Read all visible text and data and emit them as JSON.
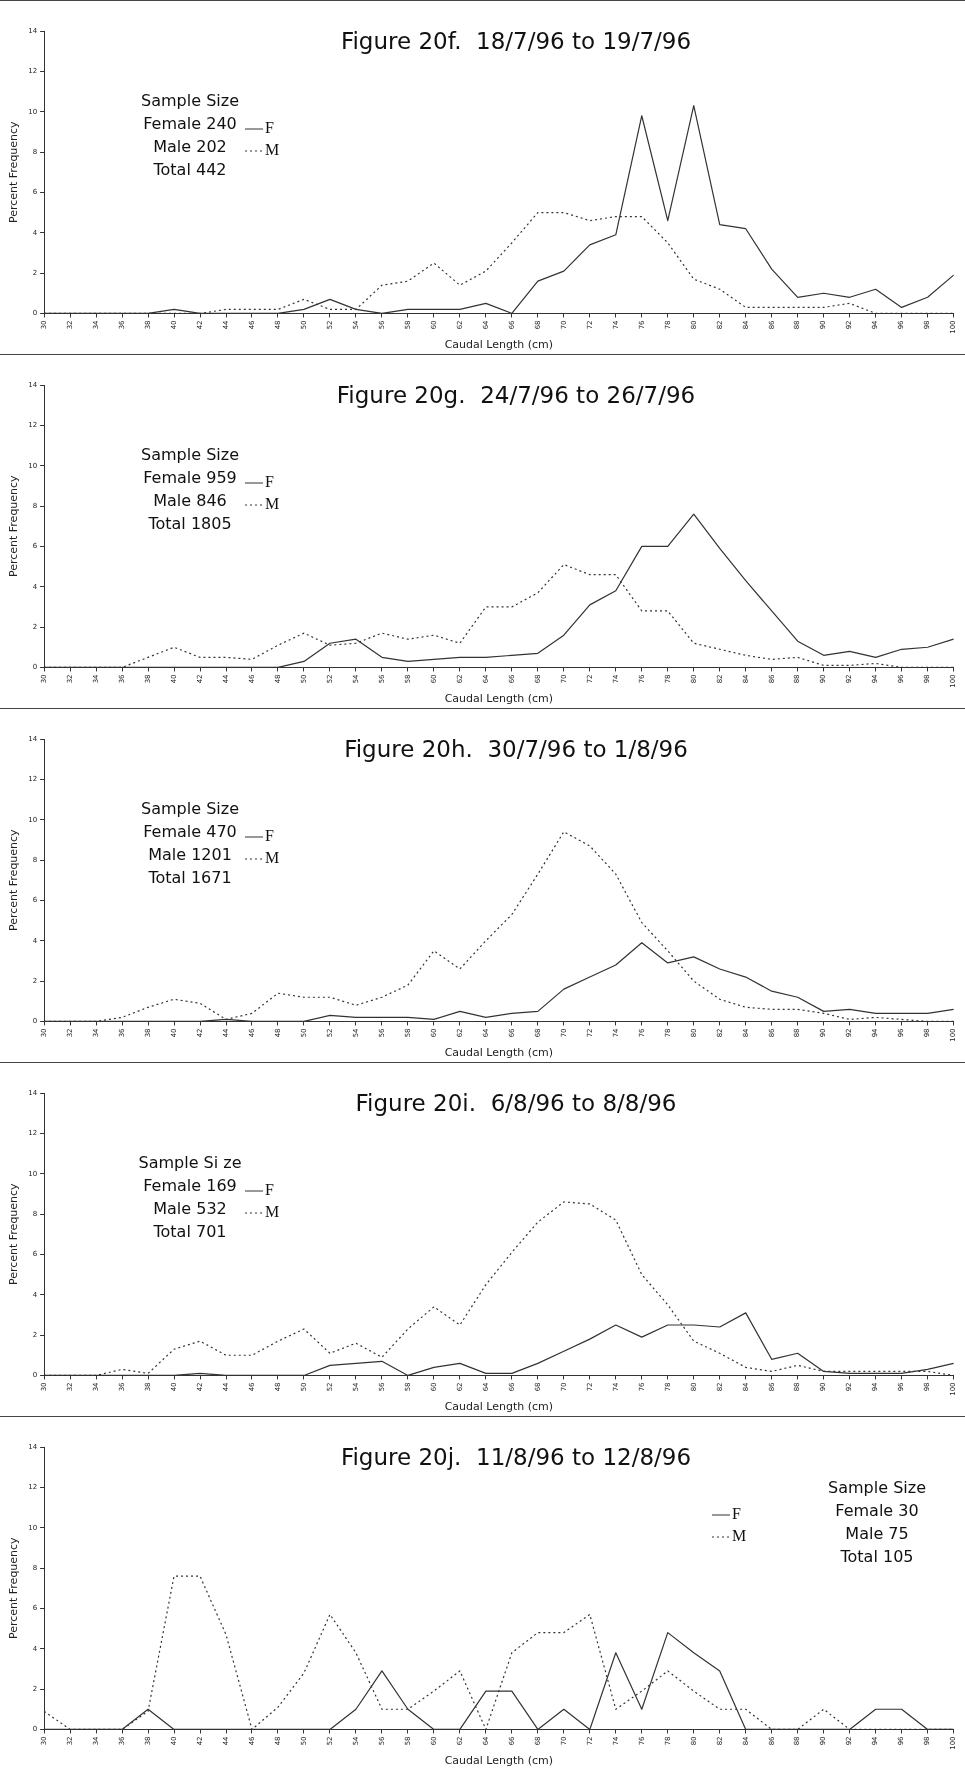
{
  "chart_data": [
    {
      "type": "line",
      "title": "Figure 20f.  18/7/96 to 19/7/96",
      "xlabel": "Caudal Length (cm)",
      "ylabel": "Percent Frequency",
      "categories": [
        "30",
        "32",
        "34",
        "36",
        "38",
        "40",
        "42",
        "44",
        "46",
        "48",
        "50",
        "52",
        "54",
        "56",
        "58",
        "60",
        "62",
        "64",
        "66",
        "68",
        "70",
        "72",
        "74",
        "76",
        "78",
        "80",
        "82",
        "84",
        "86",
        "88",
        "90",
        "92",
        "94",
        "96",
        "98",
        "100"
      ],
      "ylim": [
        0,
        14
      ],
      "yticks": [
        0,
        2,
        4,
        6,
        8,
        10,
        12,
        14
      ],
      "legend": "top left",
      "marker": "none",
      "annotations": [
        "Sample Size",
        "Female 240",
        "Male 202",
        "Total 442"
      ],
      "series": [
        {
          "name": "F",
          "color": "#333333",
          "line_style": "solid",
          "values": [
            0,
            0,
            0,
            0,
            0,
            0.2,
            0,
            0,
            0,
            0,
            0.2,
            0.7,
            0.2,
            0,
            0.2,
            0.2,
            0.2,
            0.5,
            0,
            1.6,
            2.1,
            3.4,
            3.9,
            9.8,
            4.6,
            10.3,
            4.4,
            4.2,
            2.2,
            0.8,
            1.0,
            0.8,
            1.2,
            0.3,
            0.8,
            1.9
          ]
        },
        {
          "name": "M",
          "color": "#333333",
          "line_style": "dotted",
          "values": [
            0,
            0,
            0,
            0,
            0,
            0,
            0,
            0.2,
            0.2,
            0.2,
            0.7,
            0.2,
            0.2,
            1.4,
            1.6,
            2.5,
            1.4,
            2.1,
            3.5,
            5.0,
            5.0,
            4.6,
            4.8,
            4.8,
            3.5,
            1.7,
            1.2,
            0.3,
            0.3,
            0.3,
            0.3,
            0.5,
            0,
            0,
            0,
            0
          ]
        }
      ]
    },
    {
      "type": "line",
      "title": "Figure 20g.  24/7/96 to 26/7/96",
      "xlabel": "Caudal Length (cm)",
      "ylabel": "Percent Frequency",
      "categories": [
        "30",
        "32",
        "34",
        "36",
        "38",
        "40",
        "42",
        "44",
        "46",
        "48",
        "50",
        "52",
        "54",
        "56",
        "58",
        "60",
        "62",
        "64",
        "66",
        "68",
        "70",
        "72",
        "74",
        "76",
        "78",
        "80",
        "82",
        "84",
        "86",
        "88",
        "90",
        "92",
        "94",
        "96",
        "98",
        "100"
      ],
      "ylim": [
        0,
        14
      ],
      "yticks": [
        0,
        2,
        4,
        6,
        8,
        10,
        12,
        14
      ],
      "legend": "top left",
      "marker": "none",
      "annotations": [
        "Sample Size",
        "Female 959",
        "Male 846",
        "Total 1805"
      ],
      "series": [
        {
          "name": "F",
          "color": "#333333",
          "line_style": "solid",
          "values": [
            0,
            0,
            0,
            0,
            0,
            0,
            0,
            0,
            0,
            0,
            0.3,
            1.2,
            1.4,
            0.5,
            0.3,
            0.4,
            0.5,
            0.5,
            0.6,
            0.7,
            1.6,
            3.1,
            3.8,
            6.0,
            6.0,
            7.6,
            5.9,
            4.3,
            2.8,
            1.3,
            0.6,
            0.8,
            0.5,
            0.9,
            1.0,
            1.4
          ]
        },
        {
          "name": "M",
          "color": "#333333",
          "line_style": "dotted",
          "values": [
            0,
            0,
            0,
            0,
            0.5,
            1.0,
            0.5,
            0.5,
            0.4,
            1.1,
            1.7,
            1.1,
            1.2,
            1.7,
            1.4,
            1.6,
            1.2,
            3.0,
            3.0,
            3.7,
            5.1,
            4.6,
            4.6,
            2.8,
            2.8,
            1.2,
            0.9,
            0.6,
            0.4,
            0.5,
            0.1,
            0.1,
            0.2,
            0,
            0,
            0
          ]
        }
      ]
    },
    {
      "type": "line",
      "title": "Figure 20h.  30/7/96 to 1/8/96",
      "xlabel": "Caudal Length (cm)",
      "ylabel": "Percent Frequency",
      "categories": [
        "30",
        "32",
        "34",
        "36",
        "38",
        "40",
        "42",
        "44",
        "46",
        "48",
        "50",
        "52",
        "54",
        "56",
        "58",
        "60",
        "62",
        "64",
        "66",
        "68",
        "70",
        "72",
        "74",
        "76",
        "78",
        "80",
        "82",
        "84",
        "86",
        "88",
        "90",
        "92",
        "94",
        "96",
        "98",
        "100"
      ],
      "ylim": [
        0,
        14
      ],
      "yticks": [
        0,
        2,
        4,
        6,
        8,
        10,
        12,
        14
      ],
      "legend": "top left",
      "marker": "none",
      "annotations": [
        "Sample Size",
        "Female 470",
        "Male 1201",
        "Total 1671"
      ],
      "series": [
        {
          "name": "F",
          "color": "#333333",
          "line_style": "solid",
          "values": [
            0,
            0,
            0,
            0,
            0,
            0,
            0,
            0.1,
            0,
            0,
            0,
            0.3,
            0.2,
            0.2,
            0.2,
            0.1,
            0.5,
            0.2,
            0.4,
            0.5,
            1.6,
            2.2,
            2.8,
            3.9,
            2.9,
            3.2,
            2.6,
            2.2,
            1.5,
            1.2,
            0.5,
            0.6,
            0.4,
            0.4,
            0.4,
            0.6
          ]
        },
        {
          "name": "M",
          "color": "#333333",
          "line_style": "dotted",
          "values": [
            0,
            0,
            0,
            0.2,
            0.7,
            1.1,
            0.9,
            0.1,
            0.4,
            1.4,
            1.2,
            1.2,
            0.8,
            1.2,
            1.8,
            3.5,
            2.6,
            4.0,
            5.3,
            7.3,
            9.4,
            8.7,
            7.3,
            4.9,
            3.5,
            2.0,
            1.1,
            0.7,
            0.6,
            0.6,
            0.4,
            0.1,
            0.2,
            0.1,
            0,
            0
          ]
        }
      ]
    },
    {
      "type": "line",
      "title": "Figure 20i.  6/8/96 to 8/8/96",
      "xlabel": "Caudal Length (cm)",
      "ylabel": "Percent Frequency",
      "categories": [
        "30",
        "32",
        "34",
        "36",
        "38",
        "40",
        "42",
        "44",
        "46",
        "48",
        "50",
        "52",
        "54",
        "56",
        "58",
        "60",
        "62",
        "64",
        "66",
        "68",
        "70",
        "72",
        "74",
        "76",
        "78",
        "80",
        "82",
        "84",
        "86",
        "88",
        "90",
        "92",
        "94",
        "96",
        "98",
        "100"
      ],
      "ylim": [
        0,
        14
      ],
      "yticks": [
        0,
        2,
        4,
        6,
        8,
        10,
        12,
        14
      ],
      "legend": "top left",
      "marker": "none",
      "annotations": [
        "Sample Si ze",
        "Female 169",
        "Male 532",
        "Total 701"
      ],
      "series": [
        {
          "name": "F",
          "color": "#333333",
          "line_style": "solid",
          "values": [
            0,
            0,
            0,
            0,
            0,
            0,
            0.1,
            0,
            0,
            0,
            0,
            0.5,
            0.6,
            0.7,
            0,
            0.4,
            0.6,
            0.1,
            0.1,
            0.6,
            1.2,
            1.8,
            2.5,
            1.9,
            2.5,
            2.5,
            2.4,
            3.1,
            0.8,
            1.1,
            0.2,
            0.1,
            0.1,
            0.1,
            0.3,
            0.6
          ]
        },
        {
          "name": "M",
          "color": "#333333",
          "line_style": "dotted",
          "values": [
            0,
            0,
            0,
            0.3,
            0.1,
            1.3,
            1.7,
            1.0,
            1.0,
            1.7,
            2.3,
            1.1,
            1.6,
            0.9,
            2.3,
            3.4,
            2.5,
            4.5,
            6.1,
            7.6,
            8.6,
            8.5,
            7.7,
            5.0,
            3.5,
            1.7,
            1.1,
            0.4,
            0.2,
            0.5,
            0.2,
            0.2,
            0.2,
            0.2,
            0.2,
            0
          ]
        }
      ]
    },
    {
      "type": "line",
      "title": "Figure 20j.  11/8/96 to 12/8/96",
      "xlabel": "Caudal Length (cm)",
      "ylabel": "Percent Frequency",
      "categories": [
        "30",
        "32",
        "34",
        "36",
        "38",
        "40",
        "42",
        "44",
        "46",
        "48",
        "50",
        "52",
        "54",
        "56",
        "58",
        "60",
        "62",
        "64",
        "66",
        "68",
        "70",
        "72",
        "74",
        "76",
        "78",
        "80",
        "82",
        "84",
        "86",
        "88",
        "90",
        "92",
        "94",
        "96",
        "98",
        "100"
      ],
      "ylim": [
        0,
        14
      ],
      "yticks": [
        0,
        2,
        4,
        6,
        8,
        10,
        12,
        14
      ],
      "legend": "top right",
      "marker": "none",
      "annotations": [
        "Sample Size",
        "Female 30",
        "Male 75",
        "Total 105"
      ],
      "series": [
        {
          "name": "F",
          "color": "#333333",
          "line_style": "solid",
          "values": [
            0,
            0,
            0,
            0,
            1.0,
            0,
            0,
            0,
            0,
            0,
            0,
            0,
            1.0,
            2.9,
            1.0,
            0,
            0,
            1.9,
            1.9,
            0,
            1.0,
            0,
            3.8,
            1.0,
            4.8,
            3.8,
            2.9,
            0,
            0,
            0,
            0,
            0,
            1.0,
            1.0,
            0,
            0
          ]
        },
        {
          "name": "M",
          "color": "#333333",
          "line_style": "dotted",
          "values": [
            0.9,
            0,
            0,
            0,
            0.9,
            7.6,
            7.6,
            4.7,
            0,
            1.1,
            2.8,
            5.7,
            3.8,
            1.0,
            1.0,
            1.9,
            2.9,
            0,
            3.8,
            4.8,
            4.8,
            5.7,
            1.0,
            1.9,
            2.9,
            1.9,
            1.0,
            1.0,
            0,
            0,
            1.0,
            0,
            0,
            0,
            0,
            0
          ]
        }
      ]
    }
  ]
}
